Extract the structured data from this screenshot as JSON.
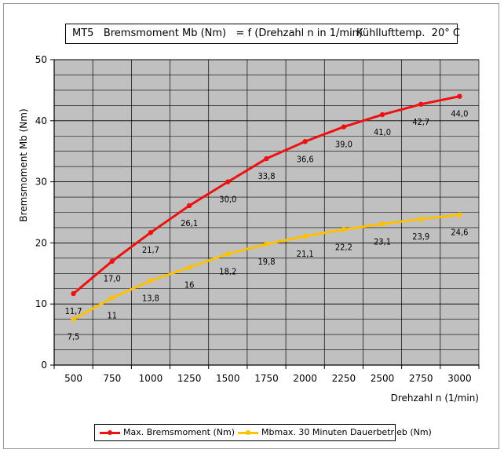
{
  "title": {
    "left": "MT5   Bremsmoment Mb (Nm)   = f (Drehzahl n in 1/min)",
    "right": "Kühllufttemp.  20° C"
  },
  "colors": {
    "series1": "#ee1111",
    "series2": "#ffc000",
    "plot_bg": "#c0c0c0",
    "grid": "#000000"
  },
  "chart_data": {
    "type": "line",
    "title": "MT5   Bremsmoment Mb (Nm)   = f (Drehzahl n in 1/min)     Kühllufttemp.  20° C",
    "xlabel": "Drehzahl n (1/min)",
    "ylabel": "Bremsmoment Mb (Nm)",
    "categories": [
      "500",
      "750",
      "1000",
      "1250",
      "1500",
      "1750",
      "2000",
      "2250",
      "2500",
      "2750",
      "3000"
    ],
    "ylim": [
      0,
      50
    ],
    "yticks": [
      "0",
      "10",
      "20",
      "30",
      "40",
      "50"
    ],
    "grid": true,
    "legend": "bottom",
    "series": [
      {
        "name": "Max. Bremsmoment (Nm)",
        "color": "#ee1111",
        "values": [
          11.7,
          17.0,
          21.7,
          26.1,
          30.0,
          33.8,
          36.6,
          39.0,
          41.0,
          42.7,
          44.0
        ],
        "labels": [
          "11,7",
          "17,0",
          "21,7",
          "26,1",
          "30,0",
          "33,8",
          "36,6",
          "39,0",
          "41,0",
          "42,7",
          "44,0"
        ]
      },
      {
        "name": "Mbmax. 30 Minuten Dauerbetrieb (Nm)",
        "color": "#ffc000",
        "values": [
          7.5,
          11,
          13.8,
          16,
          18.2,
          19.8,
          21.1,
          22.2,
          23.1,
          23.9,
          24.6
        ],
        "labels": [
          "7,5",
          "11",
          "13,8",
          "16",
          "18,2",
          "19,8",
          "21,1",
          "22,2",
          "23,1",
          "23,9",
          "24,6"
        ]
      }
    ]
  }
}
